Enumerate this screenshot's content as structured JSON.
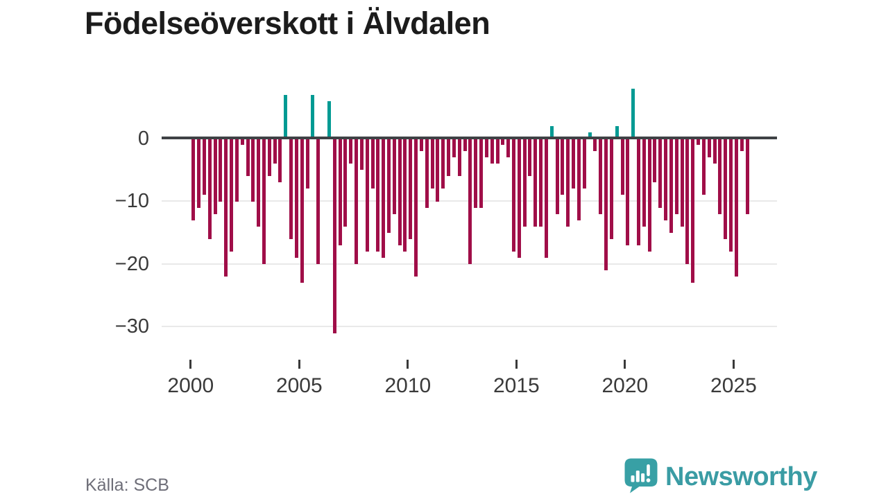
{
  "title": "Födelseöverskott i Älvdalen",
  "source": "Källa: SCB",
  "logo": {
    "brand": "Newsworthy",
    "icon": "speech-bubble-bar-chart-icon"
  },
  "colors": {
    "bar_negative": "#a00e48",
    "bar_positive": "#009a93",
    "axis_line": "#3f4245",
    "gridline": "#e9e9e9",
    "tick_label": "#3a3a3a",
    "source_text": "#6e6e78",
    "logo_teal": "#3a9ca4",
    "title_text": "#1c1c1c",
    "background": "#ffffff"
  },
  "chart_data": {
    "type": "bar",
    "title": "Födelseöverskott i Älvdalen",
    "xlabel": "",
    "ylabel": "",
    "x_unit": "quarter",
    "grid": true,
    "legend": "none",
    "ylim": [
      -33,
      9
    ],
    "y_axis": {
      "labels": [
        "0",
        "−10",
        "−20",
        "−30"
      ],
      "values": [
        0,
        -10,
        -20,
        -30
      ]
    },
    "x_axis": {
      "labels": [
        "2000",
        "2005",
        "2010",
        "2015",
        "2020",
        "2025"
      ],
      "years": [
        2000,
        2005,
        2010,
        2015,
        2020,
        2025
      ]
    },
    "categories": [
      "2000-Q1",
      "2000-Q2",
      "2000-Q3",
      "2000-Q4",
      "2001-Q1",
      "2001-Q2",
      "2001-Q3",
      "2001-Q4",
      "2002-Q1",
      "2002-Q2",
      "2002-Q3",
      "2002-Q4",
      "2003-Q1",
      "2003-Q2",
      "2003-Q3",
      "2003-Q4",
      "2004-Q1",
      "2004-Q2",
      "2004-Q3",
      "2004-Q4",
      "2005-Q1",
      "2005-Q2",
      "2005-Q3",
      "2005-Q4",
      "2006-Q1",
      "2006-Q2",
      "2006-Q3",
      "2006-Q4",
      "2007-Q1",
      "2007-Q2",
      "2007-Q3",
      "2007-Q4",
      "2008-Q1",
      "2008-Q2",
      "2008-Q3",
      "2008-Q4",
      "2009-Q1",
      "2009-Q2",
      "2009-Q3",
      "2009-Q4",
      "2010-Q1",
      "2010-Q2",
      "2010-Q3",
      "2010-Q4",
      "2011-Q1",
      "2011-Q2",
      "2011-Q3",
      "2011-Q4",
      "2012-Q1",
      "2012-Q2",
      "2012-Q3",
      "2012-Q4",
      "2013-Q1",
      "2013-Q2",
      "2013-Q3",
      "2013-Q4",
      "2014-Q1",
      "2014-Q2",
      "2014-Q3",
      "2014-Q4",
      "2015-Q1",
      "2015-Q2",
      "2015-Q3",
      "2015-Q4",
      "2016-Q1",
      "2016-Q2",
      "2016-Q3",
      "2016-Q4",
      "2017-Q1",
      "2017-Q2",
      "2017-Q3",
      "2017-Q4",
      "2018-Q1",
      "2018-Q2",
      "2018-Q3",
      "2018-Q4",
      "2019-Q1",
      "2019-Q2",
      "2019-Q3",
      "2019-Q4",
      "2020-Q1",
      "2020-Q2",
      "2020-Q3",
      "2020-Q4",
      "2021-Q1",
      "2021-Q2",
      "2021-Q3",
      "2021-Q4",
      "2022-Q1",
      "2022-Q2",
      "2022-Q3",
      "2022-Q4",
      "2023-Q1",
      "2023-Q2",
      "2023-Q3",
      "2023-Q4",
      "2024-Q1",
      "2024-Q2",
      "2024-Q3",
      "2024-Q4",
      "2025-Q1",
      "2025-Q2",
      "2025-Q3"
    ],
    "values": [
      -13,
      -11,
      -9,
      -16,
      -12,
      -10,
      -22,
      -18,
      -10,
      -1,
      -6,
      -10,
      -14,
      -20,
      -6,
      -4,
      -7,
      7,
      -16,
      -19,
      -23,
      -8,
      7,
      -20,
      0,
      6,
      -31,
      -17,
      -14,
      -4,
      -20,
      -5,
      -18,
      -8,
      -18,
      -19,
      -15,
      -12,
      -17,
      -18,
      -16,
      -22,
      -2,
      -11,
      -8,
      -10,
      -8,
      -6,
      -3,
      -6,
      -2,
      -20,
      -11,
      -11,
      -3,
      -4,
      -4,
      -1,
      -3,
      -18,
      -19,
      -14,
      -6,
      -14,
      -14,
      -19,
      2,
      -12,
      -9,
      -14,
      -8,
      -13,
      -8,
      1,
      -2,
      -12,
      -21,
      -16,
      2,
      -9,
      -17,
      8,
      -17,
      -14,
      -18,
      -7,
      -11,
      -13,
      -15,
      -12,
      -14,
      -20,
      -23,
      -1,
      -9,
      -3,
      -4,
      -12,
      -16,
      -18,
      -22,
      -2,
      -12
    ]
  }
}
